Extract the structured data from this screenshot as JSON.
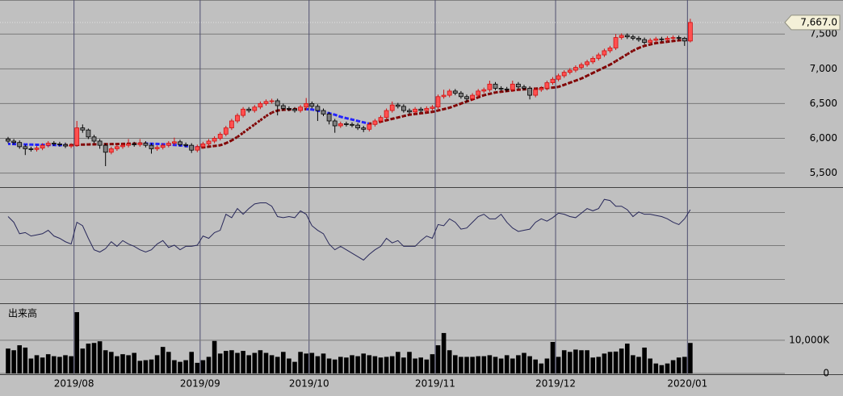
{
  "chart_data": [
    {
      "type": "candlestick",
      "categories": [
        null,
        null,
        null,
        null,
        null,
        null,
        null,
        null,
        null,
        null,
        null,
        null,
        "2019/08",
        null,
        null,
        null,
        null,
        null,
        null,
        null,
        null,
        null,
        null,
        null,
        null,
        null,
        null,
        null,
        null,
        null,
        null,
        null,
        null,
        null,
        "2019/09",
        null,
        null,
        null,
        null,
        null,
        null,
        null,
        null,
        null,
        null,
        null,
        null,
        null,
        null,
        null,
        null,
        null,
        null,
        "2019/10",
        null,
        null,
        null,
        null,
        null,
        null,
        null,
        null,
        null,
        null,
        null,
        null,
        null,
        null,
        null,
        null,
        null,
        null,
        null,
        null,
        null,
        "2019/11",
        null,
        null,
        null,
        null,
        null,
        null,
        null,
        null,
        null,
        null,
        null,
        null,
        null,
        null,
        null,
        null,
        null,
        null,
        null,
        null,
        "2019/12",
        null,
        null,
        null,
        null,
        null,
        null,
        null,
        null,
        null,
        null,
        null,
        null,
        null,
        null,
        null,
        null,
        null,
        null,
        null,
        null,
        null,
        null,
        "2020/01"
      ],
      "open": [
        5990,
        5960,
        5940,
        5880,
        5850,
        5840,
        5860,
        5900,
        5930,
        5920,
        5910,
        5890,
        5900,
        6150,
        6120,
        6020,
        5960,
        5900,
        5800,
        5850,
        5880,
        5900,
        5920,
        5910,
        5930,
        5900,
        5850,
        5870,
        5900,
        5930,
        5950,
        5910,
        5900,
        5830,
        5880,
        5920,
        5960,
        6000,
        6060,
        6150,
        6250,
        6330,
        6420,
        6400,
        6450,
        6500,
        6530,
        6540,
        6470,
        6430,
        6420,
        6400,
        6450,
        6500,
        6460,
        6400,
        6350,
        6250,
        6180,
        6210,
        6200,
        6190,
        6150,
        6130,
        6200,
        6250,
        6300,
        6400,
        6480,
        6460,
        6400,
        6380,
        6420,
        6400,
        6430,
        6450,
        6600,
        6620,
        6680,
        6650,
        6600,
        6570,
        6620,
        6680,
        6700,
        6780,
        6720,
        6710,
        6700,
        6780,
        6740,
        6720,
        6620,
        6700,
        6720,
        6800,
        6850,
        6900,
        6950,
        6980,
        7020,
        7060,
        7100,
        7150,
        7200,
        7260,
        7300,
        7450,
        7480,
        7460,
        7440,
        7420,
        7380,
        7410,
        7430,
        7420,
        7440,
        7450,
        7440,
        7400
      ],
      "high": [
        6020,
        5990,
        5970,
        5910,
        5880,
        5890,
        5930,
        5960,
        5960,
        5950,
        5940,
        5930,
        6250,
        6200,
        6140,
        6050,
        5990,
        5930,
        5880,
        5910,
        5930,
        5990,
        5950,
        5990,
        5960,
        5930,
        5900,
        5930,
        5960,
        6010,
        5980,
        5940,
        5930,
        5910,
        5950,
        5990,
        6030,
        6090,
        6180,
        6280,
        6360,
        6450,
        6450,
        6480,
        6530,
        6560,
        6570,
        6570,
        6500,
        6460,
        6450,
        6480,
        6580,
        6530,
        6490,
        6430,
        6380,
        6280,
        6240,
        6240,
        6230,
        6220,
        6180,
        6230,
        6280,
        6330,
        6430,
        6530,
        6510,
        6490,
        6430,
        6450,
        6450,
        6460,
        6480,
        6630,
        6700,
        6710,
        6710,
        6680,
        6630,
        6650,
        6710,
        6730,
        6830,
        6810,
        6750,
        6740,
        6830,
        6810,
        6770,
        6750,
        6730,
        6750,
        6830,
        6880,
        6930,
        6980,
        7010,
        7050,
        7090,
        7130,
        7180,
        7230,
        7290,
        7330,
        7500,
        7510,
        7510,
        7490,
        7470,
        7450,
        7440,
        7460,
        7460,
        7470,
        7480,
        7480,
        7460,
        7720
      ],
      "low": [
        5930,
        5910,
        5850,
        5760,
        5810,
        5810,
        5830,
        5870,
        5890,
        5880,
        5860,
        5860,
        5880,
        6080,
        5990,
        5930,
        5850,
        5600,
        5770,
        5820,
        5850,
        5870,
        5880,
        5880,
        5870,
        5780,
        5820,
        5840,
        5870,
        5900,
        5880,
        5870,
        5790,
        5800,
        5850,
        5890,
        5930,
        5970,
        6030,
        6120,
        6220,
        6300,
        6370,
        6370,
        6420,
        6470,
        6500,
        6330,
        6400,
        6390,
        6370,
        6370,
        6420,
        6430,
        6250,
        6320,
        6200,
        6080,
        6150,
        6170,
        6160,
        6120,
        6090,
        6100,
        6170,
        6220,
        6270,
        6370,
        6430,
        6370,
        6350,
        6350,
        6370,
        6370,
        6400,
        6420,
        6570,
        6590,
        6620,
        6570,
        6520,
        6540,
        6590,
        6650,
        6670,
        6690,
        6680,
        6670,
        6670,
        6710,
        6690,
        6560,
        6590,
        6670,
        6690,
        6770,
        6820,
        6870,
        6920,
        6950,
        6990,
        7030,
        7070,
        7120,
        7170,
        7230,
        7270,
        7420,
        7430,
        7410,
        7390,
        7350,
        7350,
        7380,
        7390,
        7390,
        7410,
        7410,
        7330,
        7380
      ],
      "close": [
        5960,
        5940,
        5880,
        5850,
        5840,
        5860,
        5900,
        5930,
        5920,
        5910,
        5890,
        5900,
        6150,
        6120,
        6020,
        5960,
        5900,
        5800,
        5850,
        5880,
        5900,
        5920,
        5910,
        5930,
        5900,
        5850,
        5870,
        5900,
        5930,
        5950,
        5910,
        5900,
        5830,
        5880,
        5920,
        5960,
        6000,
        6060,
        6150,
        6250,
        6330,
        6420,
        6400,
        6450,
        6500,
        6530,
        6540,
        6470,
        6430,
        6420,
        6400,
        6450,
        6500,
        6460,
        6400,
        6350,
        6250,
        6180,
        6210,
        6200,
        6190,
        6150,
        6130,
        6200,
        6250,
        6300,
        6400,
        6480,
        6460,
        6400,
        6380,
        6420,
        6400,
        6430,
        6450,
        6600,
        6620,
        6680,
        6650,
        6600,
        6570,
        6620,
        6680,
        6700,
        6780,
        6720,
        6710,
        6700,
        6780,
        6740,
        6720,
        6620,
        6700,
        6720,
        6800,
        6850,
        6900,
        6950,
        6980,
        7020,
        7060,
        7100,
        7150,
        7200,
        7260,
        7300,
        7450,
        7480,
        7460,
        7440,
        7420,
        7380,
        7410,
        7430,
        7420,
        7440,
        7450,
        7440,
        7400,
        7667
      ],
      "up_color": "#ff5050",
      "down_color": "#808080",
      "ma": {
        "values": [
          5920,
          5918,
          5915,
          5912,
          5910,
          5908,
          5906,
          5905,
          5904,
          5903,
          5902,
          5902,
          5905,
          5910,
          5912,
          5914,
          5915,
          5916,
          5917,
          5918,
          5920,
          5922,
          5923,
          5924,
          5924,
          5922,
          5920,
          5915,
          5910,
          5905,
          5900,
          5890,
          5880,
          5870,
          5870,
          5880,
          5890,
          5900,
          5930,
          5970,
          6020,
          6080,
          6140,
          6200,
          6260,
          6320,
          6370,
          6400,
          6410,
          6415,
          6420,
          6420,
          6420,
          6415,
          6400,
          6380,
          6360,
          6340,
          6310,
          6290,
          6270,
          6250,
          6230,
          6210,
          6220,
          6240,
          6260,
          6280,
          6300,
          6320,
          6340,
          6350,
          6360,
          6370,
          6380,
          6400,
          6420,
          6440,
          6470,
          6500,
          6530,
          6560,
          6590,
          6620,
          6640,
          6660,
          6670,
          6680,
          6690,
          6700,
          6705,
          6710,
          6715,
          6720,
          6725,
          6730,
          6740,
          6770,
          6800,
          6830,
          6860,
          6900,
          6940,
          6980,
          7020,
          7060,
          7110,
          7160,
          7210,
          7260,
          7300,
          7330,
          7350,
          7370,
          7380,
          7390,
          7400,
          7410,
          7415,
          7420
        ],
        "up_color": "#800000",
        "down_color": "#2020ff"
      },
      "last_price": 7667,
      "last_price_label": "7,667.0",
      "ylim": [
        5310,
        7990
      ],
      "yticks": [
        {
          "value": 5500,
          "label": "5,500"
        },
        {
          "value": 6000,
          "label": "6,000"
        },
        {
          "value": 6500,
          "label": "6,500"
        },
        {
          "value": 7000,
          "label": "7,000"
        },
        {
          "value": 7500,
          "label": "7,500"
        }
      ],
      "grid": true
    },
    {
      "type": "line",
      "color": "#28285a",
      "values": [
        75,
        70,
        60,
        61,
        58,
        59,
        60,
        63,
        58,
        56,
        53,
        51,
        70,
        67,
        56,
        46,
        44,
        47,
        53,
        49,
        54,
        51,
        49,
        46,
        44,
        46,
        51,
        54,
        48,
        50,
        46,
        49,
        49,
        50,
        58,
        56,
        61,
        63,
        77,
        74,
        82,
        77,
        82,
        86,
        87,
        87,
        84,
        75,
        74,
        75,
        74,
        80,
        77,
        67,
        63,
        60,
        51,
        46,
        49,
        46,
        43,
        40,
        37,
        42,
        46,
        49,
        56,
        52,
        54,
        49,
        49,
        49,
        54,
        58,
        56,
        68,
        67,
        73,
        70,
        64,
        65,
        70,
        75,
        77,
        73,
        73,
        77,
        70,
        65,
        62,
        63,
        64,
        70,
        73,
        71,
        74,
        78,
        77,
        75,
        74,
        78,
        82,
        80,
        82,
        90,
        89,
        84,
        84,
        81,
        75,
        79,
        77,
        77,
        76,
        75,
        73,
        70,
        68,
        73,
        81
      ],
      "ylim": [
        0,
        100
      ]
    },
    {
      "type": "bar",
      "title": "出来高",
      "color": "#000000",
      "values": [
        7500,
        7000,
        8500,
        7800,
        4500,
        5500,
        4800,
        5800,
        5200,
        5000,
        5500,
        5200,
        18500,
        7500,
        9000,
        9200,
        9700,
        7000,
        6500,
        5200,
        5800,
        5500,
        6200,
        3800,
        4000,
        4200,
        5500,
        8000,
        6500,
        4000,
        3500,
        4000,
        6500,
        3200,
        4000,
        5000,
        9800,
        6000,
        6800,
        7000,
        6200,
        6800,
        5500,
        6200,
        7000,
        6200,
        5500,
        5000,
        6500,
        4500,
        3500,
        6500,
        6000,
        6200,
        5200,
        6000,
        4500,
        4200,
        5000,
        4800,
        5500,
        5200,
        6000,
        5500,
        5200,
        4800,
        5000,
        5200,
        6500,
        4800,
        6500,
        4500,
        4800,
        4200,
        5800,
        8500,
        12200,
        7000,
        5500,
        5000,
        5000,
        5000,
        5200,
        5200,
        5500,
        5000,
        4500,
        5500,
        4500,
        5500,
        6200,
        5200,
        4200,
        3000,
        4500,
        9500,
        5000,
        7000,
        6500,
        7200,
        7000,
        7000,
        4800,
        5000,
        6000,
        6500,
        6600,
        7500,
        9000,
        5500,
        5000,
        7800,
        4500,
        3000,
        2500,
        3000,
        4000,
        4800,
        5000,
        9200
      ],
      "ylim": [
        0,
        20700
      ],
      "yticks": [
        0,
        {
          "value": 10000,
          "label": "10,000K"
        }
      ]
    }
  ]
}
